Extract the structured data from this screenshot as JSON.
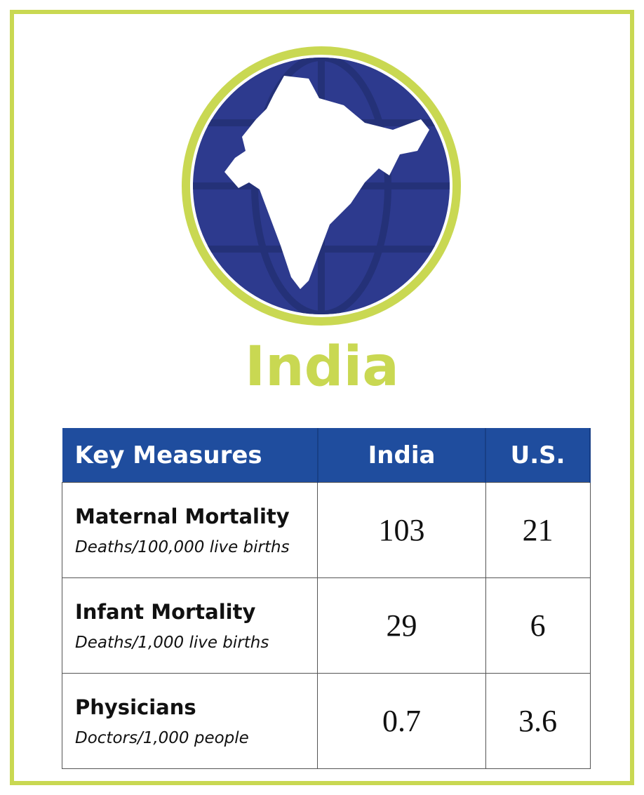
{
  "title": "India",
  "table": {
    "header": [
      "Key Measures",
      "India",
      "U.S."
    ],
    "rows": [
      {
        "measure": "Maternal Mortality",
        "unit": "Deaths/100,000 live births",
        "india": 103,
        "us": 21
      },
      {
        "measure": "Infant Mortality",
        "unit": "Deaths/1,000 live births",
        "india": 29,
        "us": 6
      },
      {
        "measure": "Physicians",
        "unit": "Doctors/1,000 people",
        "india": 0.7,
        "us": 3.6
      }
    ]
  }
}
